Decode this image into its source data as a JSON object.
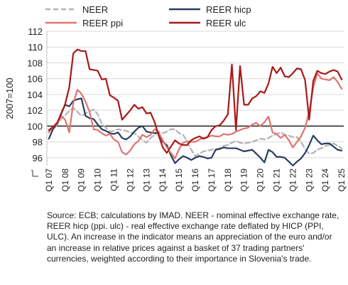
{
  "chart_data": {
    "type": "line",
    "ylabel": "2007=100",
    "ylim": [
      95,
      112
    ],
    "yticks": [
      96,
      98,
      100,
      102,
      104,
      106,
      108,
      110,
      112
    ],
    "reference_line": 100,
    "x_start": "Q1 07",
    "x_tick_labels": [
      "Q1 07",
      "Q1 08",
      "Q1 09",
      "Q1 10",
      "Q1 11",
      "Q1 12",
      "Q1 13",
      "Q1 14",
      "Q1 15",
      "Q1 16",
      "Q1 17",
      "Q1 18",
      "Q1 19",
      "Q1 20",
      "Q1 21",
      "Q1 22",
      "Q1 23",
      "Q1 24",
      "Q1 25"
    ],
    "legend_position": "top",
    "series": [
      {
        "name": "NEER",
        "color": "#b3b3b3",
        "dash": "dashed",
        "values": [
          99.4,
          99.6,
          100.1,
          100.9,
          101.4,
          101.9,
          102.3,
          101.8,
          101.3,
          101.6,
          101.9,
          102.1,
          101.5,
          100.3,
          99.8,
          99.3,
          99.4,
          99.6,
          99.5,
          99.4,
          99.2,
          99.1,
          98.7,
          98.2,
          97.9,
          98.5,
          98.9,
          99.3,
          99.1,
          99.3,
          99.6,
          99.6,
          99.1,
          98.9,
          98.0,
          97.0,
          96.2,
          96.5,
          96.8,
          96.9,
          97.0,
          97.1,
          97.2,
          97.5,
          97.6,
          97.9,
          98.1,
          97.9,
          97.8,
          97.9,
          98.0,
          98.2,
          98.4,
          98.3,
          98.5,
          98.8,
          99.0,
          99.2,
          98.9,
          98.8,
          98.6,
          98.6,
          98.0,
          97.1,
          96.5,
          96.6,
          97.0,
          97.2,
          97.5,
          97.6,
          97.8,
          97.5,
          97.2
        ]
      },
      {
        "name": "REER hicp",
        "color": "#2a3d60",
        "dash": "solid",
        "values": [
          98.4,
          99.6,
          100.3,
          101.6,
          102.7,
          102.5,
          103.2,
          103.4,
          103.5,
          101.3,
          101.0,
          100.9,
          100.2,
          99.6,
          99.4,
          99.1,
          99.0,
          99.2,
          98.5,
          98.3,
          98.7,
          99.3,
          99.8,
          100.0,
          99.3,
          99.2,
          99.1,
          99.2,
          98.0,
          97.6,
          96.3,
          95.3,
          95.8,
          96.2,
          96.0,
          95.7,
          96.0,
          96.2,
          96.1,
          95.9,
          96.0,
          97.0,
          97.1,
          97.3,
          97.2,
          97.2,
          97.2,
          97.0,
          96.8,
          96.9,
          97.0,
          96.5,
          96.0,
          95.4,
          97.0,
          96.7,
          96.1,
          96.1,
          96.0,
          95.5,
          95.0,
          95.5,
          95.9,
          96.6,
          97.6,
          98.8,
          98.2,
          97.7,
          97.8,
          97.8,
          97.4,
          97.0,
          96.9
        ]
      },
      {
        "name": "REER ppi",
        "color": "#e07470",
        "dash": "solid",
        "values": [
          99.2,
          99.9,
          100.3,
          101.3,
          100.8,
          99.2,
          102.9,
          104.6,
          104.1,
          103.1,
          101.8,
          99.6,
          99.5,
          99.1,
          98.8,
          99.0,
          98.3,
          98.0,
          96.7,
          96.4,
          96.9,
          97.7,
          98.1,
          98.9,
          98.6,
          98.9,
          99.6,
          99.2,
          98.2,
          97.3,
          96.6,
          95.9,
          97.1,
          97.9,
          98.1,
          98.0,
          98.0,
          98.3,
          98.5,
          98.6,
          98.8,
          98.7,
          98.7,
          99.0,
          98.9,
          99.0,
          99.3,
          99.5,
          99.7,
          99.8,
          100.2,
          100.4,
          100.0,
          100.5,
          101.2,
          99.2,
          99.0,
          98.5,
          98.9,
          98.2,
          97.3,
          98.0,
          98.7,
          99.8,
          101.8,
          104.9,
          106.7,
          106.0,
          105.9,
          105.8,
          106.2,
          105.6,
          104.7
        ]
      },
      {
        "name": "REER ulc",
        "color": "#a81818",
        "dash": "solid",
        "values": [
          99.5,
          99.9,
          100.4,
          101.5,
          102.8,
          104.9,
          109.2,
          109.7,
          109.5,
          109.5,
          107.2,
          107.1,
          107.0,
          105.9,
          106.0,
          103.9,
          103.6,
          103.2,
          100.8,
          101.4,
          102.0,
          102.7,
          102.2,
          102.4,
          101.6,
          101.7,
          100.5,
          98.8,
          97.3,
          96.6,
          97.4,
          98.2,
          97.8,
          97.6,
          97.6,
          98.2,
          98.5,
          98.7,
          98.4,
          98.6,
          99.5,
          100.0,
          100.1,
          100.7,
          101.5,
          107.8,
          99.5,
          107.6,
          102.7,
          102.7,
          103.5,
          103.8,
          104.4,
          104.2,
          105.4,
          107.5,
          106.7,
          107.4,
          106.3,
          106.2,
          106.7,
          107.3,
          107.2,
          105.8,
          100.8,
          105.7,
          107.0,
          106.7,
          106.6,
          106.9,
          107.1,
          106.9,
          105.9
        ]
      }
    ]
  },
  "source_note": "Source: ECB; calculations by IMAD. NEER - nominal effective exchange rate, REER hicp (ppi. ulc) - real effective exchange rate deflated by HICP (PPI, ULC). An increase in the indicator means an appreciation of the euro and/or an increase in relative prices against a basket of 37 trading partners' currencies, weighted according to their importance in Slovenia's trade."
}
